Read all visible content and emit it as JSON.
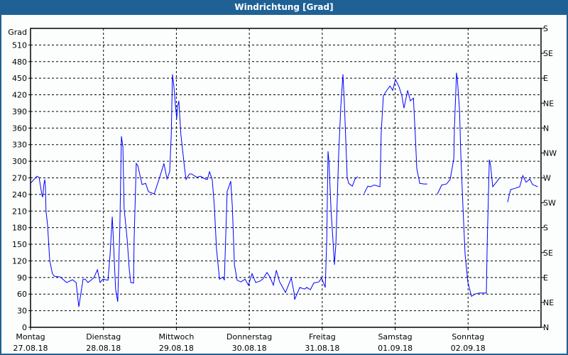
{
  "title": "Windrichtung [Grad]",
  "chart_data": {
    "type": "line",
    "title": "Windrichtung [Grad]",
    "ylabel": "Grad",
    "ylim": [
      0,
      540
    ],
    "yticks": [
      0,
      30,
      60,
      90,
      120,
      150,
      180,
      210,
      240,
      270,
      300,
      330,
      360,
      390,
      420,
      450,
      480,
      510
    ],
    "y2ticks": [
      {
        "value": 0,
        "label": "N"
      },
      {
        "value": 45,
        "label": "NE"
      },
      {
        "value": 90,
        "label": "E"
      },
      {
        "value": 135,
        "label": "SE"
      },
      {
        "value": 180,
        "label": "S"
      },
      {
        "value": 225,
        "label": "SW"
      },
      {
        "value": 270,
        "label": "W"
      },
      {
        "value": 315,
        "label": "NW"
      },
      {
        "value": 360,
        "label": "N"
      },
      {
        "value": 405,
        "label": "NE"
      },
      {
        "value": 450,
        "label": "E"
      },
      {
        "value": 495,
        "label": "SE"
      },
      {
        "value": 540,
        "label": "S"
      }
    ],
    "xticks": [
      {
        "day": "Montag",
        "date": "27.08.18"
      },
      {
        "day": "Dienstag",
        "date": "28.08.18"
      },
      {
        "day": "Mittwoch",
        "date": "29.08.18"
      },
      {
        "day": "Donnerstag",
        "date": "30.08.18"
      },
      {
        "day": "Freitag",
        "date": "31.08.18"
      },
      {
        "day": "Samstag",
        "date": "01.09.18"
      },
      {
        "day": "Sonntag",
        "date": "02.09.18"
      }
    ],
    "xlim": [
      "27.08.18 00:00",
      "03.09.18 00:00"
    ],
    "grid": true,
    "line_color": "#0000ff",
    "points": [
      [
        "27.08.18 00:00",
        260
      ],
      [
        "27.08.18 02:06",
        273
      ],
      [
        "27.08.18 02:48",
        271
      ],
      [
        "27.08.18 03:42",
        241
      ],
      [
        "27.08.18 04:00",
        235
      ],
      [
        "27.08.18 04:24",
        258
      ],
      [
        "27.08.18 04:42",
        267
      ],
      [
        "27.08.18 04:54",
        254
      ],
      [
        "27.08.18 05:06",
        210
      ],
      [
        "27.08.18 05:36",
        185
      ],
      [
        "27.08.18 06:18",
        121
      ],
      [
        "27.08.18 07:12",
        97
      ],
      [
        "27.08.18 07:54",
        92
      ],
      [
        "27.08.18 09:48",
        91
      ],
      [
        "27.08.18 11:54",
        81
      ],
      [
        "27.08.18 13:48",
        86
      ],
      [
        "27.08.18 15:00",
        81
      ],
      [
        "27.08.18 15:54",
        37
      ],
      [
        "27.08.18 16:36",
        62
      ],
      [
        "27.08.18 17:18",
        87
      ],
      [
        "27.08.18 18:00",
        87
      ],
      [
        "27.08.18 18:54",
        81
      ],
      [
        "27.08.18 20:48",
        89
      ],
      [
        "27.08.18 22:00",
        104
      ],
      [
        "27.08.18 22:54",
        81
      ],
      [
        "27.08.18 23:48",
        87
      ],
      [
        "28.08.18 01:30",
        85
      ],
      [
        "28.08.18 02:12",
        133
      ],
      [
        "28.08.18 02:54",
        200
      ],
      [
        "28.08.18 03:06",
        177
      ],
      [
        "28.08.18 04:00",
        69
      ],
      [
        "28.08.18 04:42",
        46
      ],
      [
        "28.08.18 05:24",
        181
      ],
      [
        "28.08.18 05:54",
        345
      ],
      [
        "28.08.18 06:24",
        326
      ],
      [
        "28.08.18 06:48",
        215
      ],
      [
        "28.08.18 07:48",
        159
      ],
      [
        "28.08.18 08:30",
        104
      ],
      [
        "28.08.18 09:00",
        81
      ],
      [
        "28.08.18 09:54",
        80
      ],
      [
        "28.08.18 10:06",
        159
      ],
      [
        "28.08.18 10:48",
        296
      ],
      [
        "28.08.18 11:18",
        292
      ],
      [
        "28.08.18 12:42",
        258
      ],
      [
        "28.08.18 13:54",
        260
      ],
      [
        "28.08.18 14:48",
        245
      ],
      [
        "28.08.18 16:42",
        241
      ],
      [
        "28.08.18 18:30",
        271
      ],
      [
        "28.08.18 19:54",
        296
      ],
      [
        "28.08.18 20:54",
        268
      ],
      [
        "28.08.18 21:48",
        281
      ],
      [
        "28.08.18 22:18",
        348
      ],
      [
        "28.08.18 22:42",
        457
      ],
      [
        "28.08.18 23:12",
        434
      ],
      [
        "28.08.18 23:42",
        401
      ],
      [
        "29.08.18 00:06",
        377
      ],
      [
        "29.08.18 00:24",
        399
      ],
      [
        "29.08.18 00:48",
        409
      ],
      [
        "29.08.18 01:30",
        348
      ],
      [
        "29.08.18 02:42",
        287
      ],
      [
        "29.08.18 03:12",
        267
      ],
      [
        "29.08.18 04:18",
        277
      ],
      [
        "29.08.18 05:00",
        277
      ],
      [
        "29.08.18 06:42",
        271
      ],
      [
        "29.08.18 07:54",
        273
      ],
      [
        "29.08.18 09:30",
        268
      ],
      [
        "29.08.18 10:12",
        267
      ],
      [
        "29.08.18 10:54",
        281
      ],
      [
        "29.08.18 11:48",
        267
      ],
      [
        "29.08.18 12:30",
        219
      ],
      [
        "29.08.18 13:12",
        142
      ],
      [
        "29.08.18 14:12",
        87
      ],
      [
        "29.08.18 15:18",
        91
      ],
      [
        "29.08.18 15:48",
        85
      ],
      [
        "29.08.18 16:42",
        245
      ],
      [
        "29.08.18 17:54",
        264
      ],
      [
        "29.08.18 18:24",
        219
      ],
      [
        "29.08.18 19:06",
        113
      ],
      [
        "29.08.18 20:00",
        85
      ],
      [
        "29.08.18 21:12",
        82
      ],
      [
        "29.08.18 22:36",
        87
      ],
      [
        "29.08.18 23:42",
        76
      ],
      [
        "30.08.18 00:54",
        97
      ],
      [
        "30.08.18 02:06",
        81
      ],
      [
        "30.08.18 03:18",
        83
      ],
      [
        "30.08.18 04:24",
        87
      ],
      [
        "30.08.18 05:48",
        99
      ],
      [
        "30.08.18 06:48",
        91
      ],
      [
        "30.08.18 07:54",
        76
      ],
      [
        "30.08.18 08:54",
        103
      ],
      [
        "30.08.18 10:00",
        82
      ],
      [
        "30.08.18 11:54",
        63
      ],
      [
        "30.08.18 13:48",
        89
      ],
      [
        "30.08.18 14:42",
        63
      ],
      [
        "30.08.18 14:54",
        50
      ],
      [
        "30.08.18 16:36",
        72
      ],
      [
        "30.08.18 18:12",
        69
      ],
      [
        "30.08.18 18:54",
        72
      ],
      [
        "30.08.18 20:06",
        68
      ],
      [
        "30.08.18 21:12",
        80
      ],
      [
        "30.08.18 22:54",
        82
      ],
      [
        "30.08.18 23:48",
        89
      ],
      [
        "31.08.18 01:00",
        72
      ],
      [
        "31.08.18 01:30",
        164
      ],
      [
        "31.08.18 01:54",
        318
      ],
      [
        "31.08.18 02:12",
        300
      ],
      [
        "31.08.18 02:54",
        210
      ],
      [
        "31.08.18 03:36",
        151
      ],
      [
        "31.08.18 04:00",
        113
      ],
      [
        "31.08.18 04:30",
        151
      ],
      [
        "31.08.18 05:24",
        313
      ],
      [
        "31.08.18 06:06",
        399
      ],
      [
        "31.08.18 06:48",
        457
      ],
      [
        "31.08.18 07:18",
        403
      ],
      [
        "31.08.18 07:48",
        331
      ],
      [
        "31.08.18 08:12",
        271
      ],
      [
        "31.08.18 08:42",
        260
      ],
      [
        "31.08.18 09:54",
        255
      ],
      [
        "31.08.18 10:48",
        268
      ],
      [
        "31.08.18 11:42",
        272
      ],
      null,
      [
        "31.08.18 13:48",
        242
      ],
      [
        "31.08.18 15:00",
        255
      ],
      [
        "31.08.18 15:54",
        254
      ],
      [
        "31.08.18 17:06",
        257
      ],
      [
        "31.08.18 19:00",
        254
      ],
      [
        "31.08.18 19:24",
        351
      ],
      [
        "31.08.18 20:06",
        418
      ],
      [
        "31.08.18 21:06",
        427
      ],
      [
        "31.08.18 22:18",
        436
      ],
      [
        "31.08.18 23:12",
        428
      ],
      [
        "01.09.18 00:06",
        448
      ],
      [
        "01.09.18 01:18",
        434
      ],
      [
        "01.09.18 02:12",
        418
      ],
      [
        "01.09.18 02:54",
        396
      ],
      [
        "01.09.18 04:06",
        428
      ],
      [
        "01.09.18 05:00",
        409
      ],
      [
        "01.09.18 06:00",
        414
      ],
      [
        "01.09.18 06:42",
        339
      ],
      [
        "01.09.18 07:06",
        287
      ],
      [
        "01.09.18 08:06",
        260
      ],
      [
        "01.09.18 09:30",
        259
      ],
      [
        "01.09.18 10:36",
        259
      ],
      null,
      [
        "01.09.18 13:54",
        241
      ],
      [
        "01.09.18 15:18",
        257
      ],
      [
        "01.09.18 16:54",
        259
      ],
      [
        "01.09.18 18:06",
        267
      ],
      [
        "01.09.18 19:18",
        305
      ],
      [
        "01.09.18 19:30",
        360
      ],
      [
        "01.09.18 20:12",
        460
      ],
      [
        "01.09.18 20:30",
        446
      ],
      [
        "01.09.18 21:12",
        390
      ],
      [
        "01.09.18 21:36",
        313
      ],
      [
        "01.09.18 22:18",
        219
      ],
      [
        "01.09.18 23:00",
        133
      ],
      [
        "01.09.18 23:54",
        82
      ],
      [
        "02.09.18 01:06",
        56
      ],
      [
        "02.09.18 02:18",
        60
      ],
      [
        "02.09.18 03:42",
        62
      ],
      [
        "02.09.18 06:00",
        62
      ],
      [
        "02.09.18 06:18",
        151
      ],
      [
        "02.09.18 07:00",
        303
      ],
      [
        "02.09.18 07:24",
        292
      ],
      [
        "02.09.18 08:06",
        254
      ],
      [
        "02.09.18 09:18",
        262
      ],
      [
        "02.09.18 10:30",
        271
      ],
      null,
      [
        "02.09.18 13:00",
        226
      ],
      [
        "02.09.18 14:00",
        249
      ],
      [
        "02.09.18 15:24",
        251
      ],
      [
        "02.09.18 17:00",
        254
      ],
      [
        "02.09.18 18:00",
        274
      ],
      [
        "02.09.18 19:06",
        262
      ],
      [
        "02.09.18 20:18",
        268
      ],
      [
        "02.09.18 21:12",
        258
      ],
      [
        "02.09.18 22:54",
        254
      ]
    ]
  },
  "colors": {
    "titlebar": "#1f6195",
    "line": "#0000ff",
    "grid": "#000000"
  }
}
